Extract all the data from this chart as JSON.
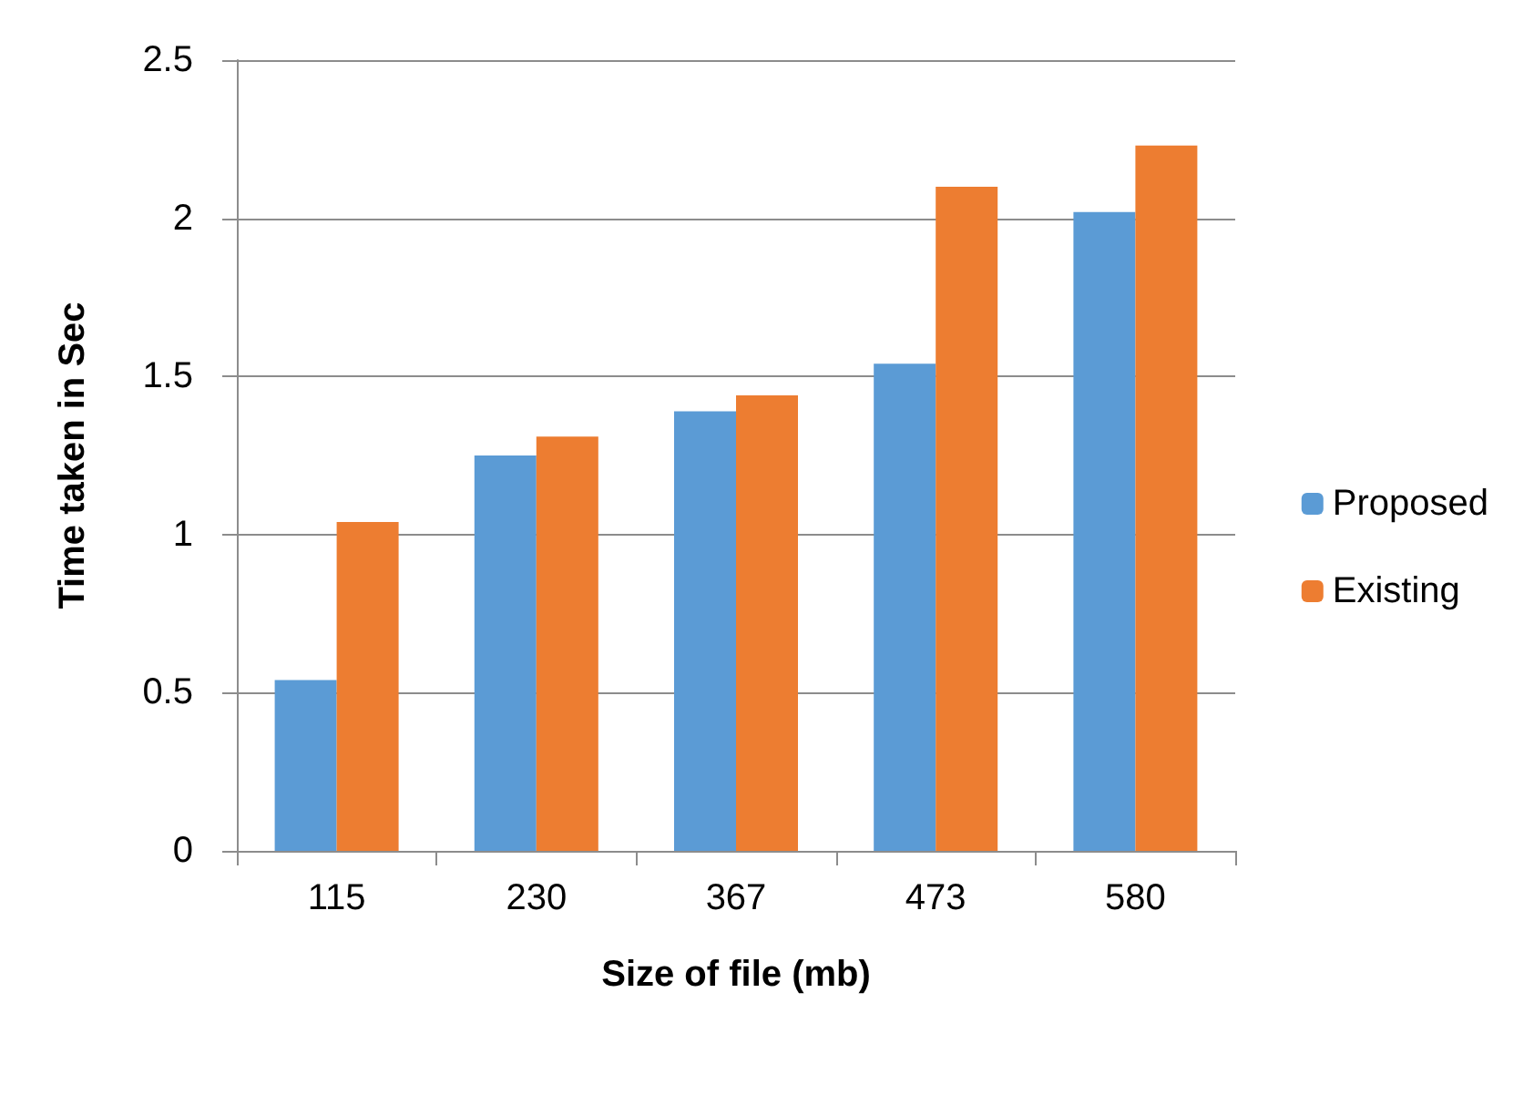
{
  "chart_data": {
    "type": "bar",
    "xlabel": "Size of file (mb)",
    "ylabel": "Time taken in Sec",
    "categories": [
      "115",
      "230",
      "367",
      "473",
      "580"
    ],
    "series": [
      {
        "name": "Proposed",
        "color": "#5b9bd5",
        "values": [
          0.54,
          1.25,
          1.39,
          1.54,
          2.02
        ]
      },
      {
        "name": "Existing",
        "color": "#ed7d31",
        "values": [
          1.04,
          1.31,
          1.44,
          2.1,
          2.23
        ]
      }
    ],
    "ylim": [
      0,
      2.5
    ],
    "yticks": [
      0,
      0.5,
      1,
      1.5,
      2,
      2.5
    ],
    "grid": "y",
    "legend": "right"
  }
}
